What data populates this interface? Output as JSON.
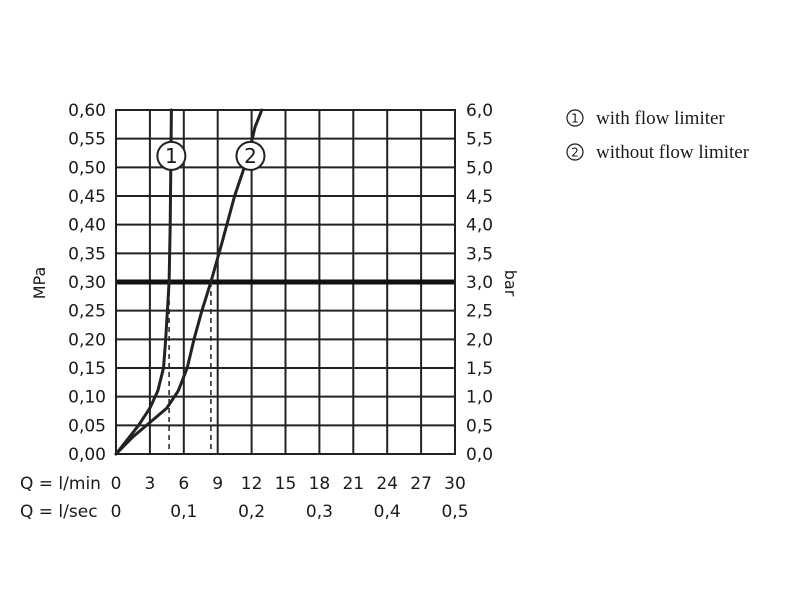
{
  "chart_data": {
    "type": "line",
    "y_left": {
      "label": "MPa",
      "ticks": [
        "0,00",
        "0,05",
        "0,10",
        "0,15",
        "0,20",
        "0,25",
        "0,30",
        "0,35",
        "0,40",
        "0,45",
        "0,50",
        "0,55",
        "0,60"
      ],
      "range": [
        0,
        0.6
      ]
    },
    "y_right": {
      "label": "bar",
      "ticks": [
        "0,0",
        "0,5",
        "1,0",
        "1,5",
        "2,0",
        "2,5",
        "3,0",
        "3,5",
        "4,0",
        "4,5",
        "5,0",
        "5,5",
        "6,0"
      ],
      "range": [
        0,
        6
      ]
    },
    "x_lmin": {
      "label": "Q = l/min",
      "ticks": [
        {
          "v": 0,
          "t": "0"
        },
        {
          "v": 3,
          "t": "3"
        },
        {
          "v": 6,
          "t": "6"
        },
        {
          "v": 9,
          "t": "9"
        },
        {
          "v": 12,
          "t": "12"
        },
        {
          "v": 15,
          "t": "15"
        },
        {
          "v": 18,
          "t": "18"
        },
        {
          "v": 21,
          "t": "21"
        },
        {
          "v": 24,
          "t": "24"
        },
        {
          "v": 27,
          "t": "27"
        },
        {
          "v": 30,
          "t": "30"
        }
      ],
      "range": [
        0,
        30
      ]
    },
    "x_lsec": {
      "label": "Q = l/sec",
      "ticks": [
        {
          "v": 0,
          "t": "0"
        },
        {
          "v": 0.1,
          "t": "0,1"
        },
        {
          "v": 0.2,
          "t": "0,2"
        },
        {
          "v": 0.3,
          "t": "0,3"
        },
        {
          "v": 0.4,
          "t": "0,4"
        },
        {
          "v": 0.5,
          "t": "0,5"
        }
      ],
      "range": [
        0,
        0.5
      ]
    },
    "grid": true,
    "reference_line": {
      "y": 0.3
    },
    "series": [
      {
        "name": "with flow limiter",
        "marker": "1",
        "points": [
          [
            0,
            0
          ],
          [
            1,
            0.025
          ],
          [
            2,
            0.05
          ],
          [
            3,
            0.08
          ],
          [
            3.7,
            0.11
          ],
          [
            4.2,
            0.15
          ],
          [
            4.4,
            0.2
          ],
          [
            4.55,
            0.25
          ],
          [
            4.7,
            0.3
          ],
          [
            4.8,
            0.4
          ],
          [
            4.85,
            0.5
          ],
          [
            4.9,
            0.6
          ]
        ],
        "marker_at": [
          4.9,
          0.52
        ],
        "dashed_to_x": 4.7
      },
      {
        "name": "without flow limiter",
        "marker": "2",
        "points": [
          [
            0,
            0
          ],
          [
            1.5,
            0.03
          ],
          [
            3,
            0.055
          ],
          [
            4.5,
            0.08
          ],
          [
            5.5,
            0.11
          ],
          [
            6.3,
            0.15
          ],
          [
            6.9,
            0.2
          ],
          [
            7.6,
            0.25
          ],
          [
            8.4,
            0.3
          ],
          [
            9.4,
            0.37
          ],
          [
            10.5,
            0.45
          ],
          [
            11.7,
            0.52
          ],
          [
            12.3,
            0.57
          ],
          [
            12.9,
            0.6
          ]
        ],
        "marker_at": [
          11.9,
          0.52
        ],
        "dashed_to_x": 8.4
      }
    ]
  },
  "legend": {
    "items": [
      {
        "num": "1",
        "label": "with flow limiter"
      },
      {
        "num": "2",
        "label": "without flow limiter"
      }
    ]
  }
}
